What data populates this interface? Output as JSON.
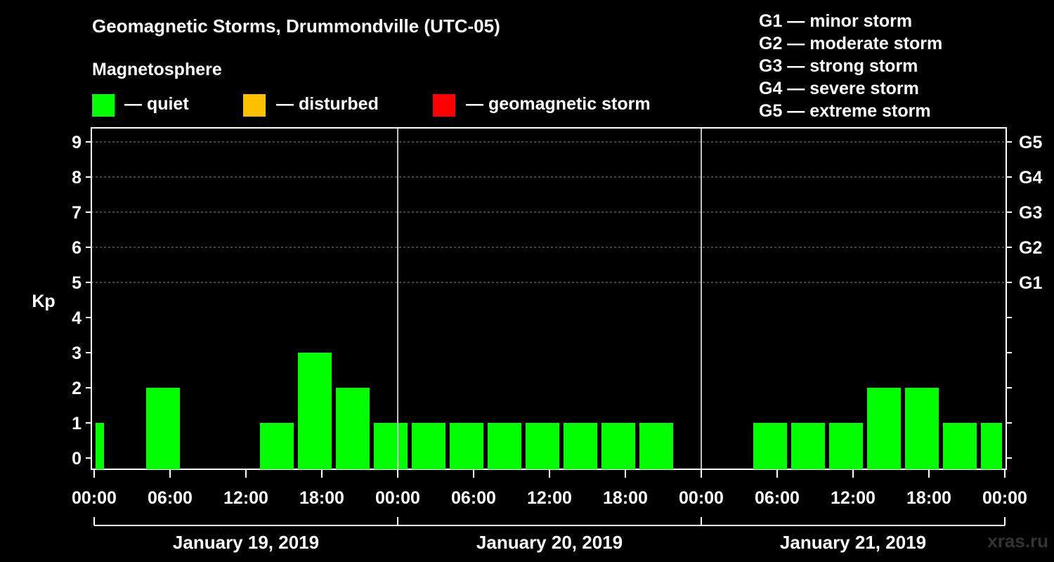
{
  "title": "Geomagnetic Storms, Drummondville (UTC-05)",
  "magnetosphere": {
    "heading": "Magnetosphere",
    "items": [
      {
        "label": "— quiet",
        "color": "#00ff00"
      },
      {
        "label": "— disturbed",
        "color": "#ffc000"
      },
      {
        "label": "— geomagnetic storm",
        "color": "#ff0000"
      }
    ]
  },
  "storm_scale": [
    "G1 — minor storm",
    "G2 — moderate storm",
    "G3 — strong storm",
    "G4 — severe storm",
    "G5 — extreme storm"
  ],
  "watermark": "xras.ru",
  "chart_data": {
    "type": "bar",
    "ylabel": "Kp",
    "ylim": [
      0,
      9
    ],
    "yticks": [
      "0",
      "1",
      "2",
      "3",
      "4",
      "5",
      "6",
      "7",
      "8",
      "9"
    ],
    "right_axis": [
      {
        "kp": 5,
        "label": "G1"
      },
      {
        "kp": 6,
        "label": "G2"
      },
      {
        "kp": 7,
        "label": "G3"
      },
      {
        "kp": 8,
        "label": "G4"
      },
      {
        "kp": 9,
        "label": "G5"
      }
    ],
    "grid": "dashed horizontal at Kp 5-9",
    "xticks": [
      "00:00",
      "06:00",
      "12:00",
      "18:00",
      "00:00",
      "06:00",
      "12:00",
      "18:00",
      "00:00",
      "06:00",
      "12:00",
      "18:00",
      "00:00"
    ],
    "days": [
      "January 19, 2019",
      "January 20, 2019",
      "January 21, 2019"
    ],
    "bar_color": "#00ff00",
    "intervals": [
      {
        "start": "2019-01-19 00:00",
        "end": "2019-01-19 01:00",
        "kp": 1
      },
      {
        "start": "2019-01-19 01:00",
        "end": "2019-01-19 04:00",
        "kp": 0
      },
      {
        "start": "2019-01-19 04:00",
        "end": "2019-01-19 07:00",
        "kp": 2
      },
      {
        "start": "2019-01-19 07:00",
        "end": "2019-01-19 10:00",
        "kp": 0
      },
      {
        "start": "2019-01-19 10:00",
        "end": "2019-01-19 13:00",
        "kp": 0
      },
      {
        "start": "2019-01-19 13:00",
        "end": "2019-01-19 16:00",
        "kp": 1
      },
      {
        "start": "2019-01-19 16:00",
        "end": "2019-01-19 19:00",
        "kp": 3
      },
      {
        "start": "2019-01-19 19:00",
        "end": "2019-01-19 22:00",
        "kp": 2
      },
      {
        "start": "2019-01-19 22:00",
        "end": "2019-01-20 01:00",
        "kp": 1
      },
      {
        "start": "2019-01-20 01:00",
        "end": "2019-01-20 04:00",
        "kp": 1
      },
      {
        "start": "2019-01-20 04:00",
        "end": "2019-01-20 07:00",
        "kp": 1
      },
      {
        "start": "2019-01-20 07:00",
        "end": "2019-01-20 10:00",
        "kp": 1
      },
      {
        "start": "2019-01-20 10:00",
        "end": "2019-01-20 13:00",
        "kp": 1
      },
      {
        "start": "2019-01-20 13:00",
        "end": "2019-01-20 16:00",
        "kp": 1
      },
      {
        "start": "2019-01-20 16:00",
        "end": "2019-01-20 19:00",
        "kp": 1
      },
      {
        "start": "2019-01-20 19:00",
        "end": "2019-01-20 22:00",
        "kp": 1
      },
      {
        "start": "2019-01-20 22:00",
        "end": "2019-01-21 01:00",
        "kp": 0
      },
      {
        "start": "2019-01-21 01:00",
        "end": "2019-01-21 04:00",
        "kp": 0
      },
      {
        "start": "2019-01-21 04:00",
        "end": "2019-01-21 07:00",
        "kp": 1
      },
      {
        "start": "2019-01-21 07:00",
        "end": "2019-01-21 10:00",
        "kp": 1
      },
      {
        "start": "2019-01-21 10:00",
        "end": "2019-01-21 13:00",
        "kp": 1
      },
      {
        "start": "2019-01-21 13:00",
        "end": "2019-01-21 16:00",
        "kp": 2
      },
      {
        "start": "2019-01-21 16:00",
        "end": "2019-01-21 19:00",
        "kp": 2
      },
      {
        "start": "2019-01-21 19:00",
        "end": "2019-01-21 22:00",
        "kp": 1
      },
      {
        "start": "2019-01-21 22:00",
        "end": "2019-01-22 00:00",
        "kp": 1
      }
    ]
  }
}
